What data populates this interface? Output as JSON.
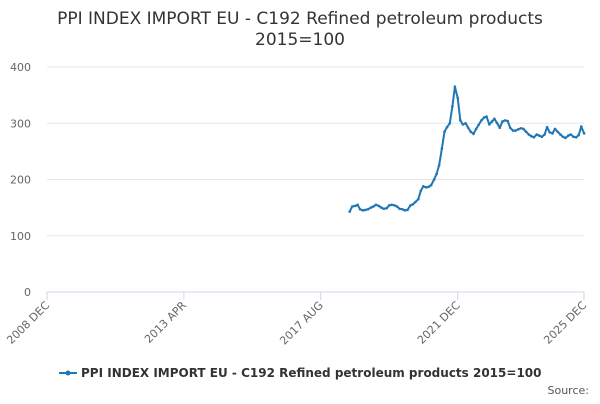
{
  "chart_data": {
    "type": "line",
    "title_lines": [
      "PPI INDEX IMPORT EU - C192 Refined petroleum products",
      "2015=100"
    ],
    "xlabel": "",
    "ylabel": "",
    "x_tick_labels": [
      "2008 DEC",
      "2013 APR",
      "2017 AUG",
      "2021 DEC",
      "2025 DEC"
    ],
    "x_tick_values": [
      2008.917,
      2013.25,
      2017.583,
      2021.917,
      2025.917
    ],
    "xlim": [
      2008.917,
      2025.917
    ],
    "ylim": [
      0,
      400
    ],
    "y_ticks": [
      0,
      100,
      200,
      300,
      400
    ],
    "grid": true,
    "legend_position": "bottom-center",
    "series": [
      {
        "name": "PPI INDEX IMPORT EU - C192 Refined petroleum products 2015=100",
        "color": "#1f77b4",
        "x": [
          2018.5,
          2018.58,
          2018.67,
          2018.75,
          2018.83,
          2018.92,
          2019.0,
          2019.08,
          2019.17,
          2019.25,
          2019.33,
          2019.42,
          2019.5,
          2019.58,
          2019.67,
          2019.75,
          2019.83,
          2019.92,
          2020.0,
          2020.08,
          2020.17,
          2020.25,
          2020.33,
          2020.42,
          2020.5,
          2020.58,
          2020.67,
          2020.75,
          2020.83,
          2020.92,
          2021.0,
          2021.08,
          2021.17,
          2021.25,
          2021.33,
          2021.42,
          2021.5,
          2021.58,
          2021.67,
          2021.75,
          2021.83,
          2021.92,
          2022.0,
          2022.08,
          2022.17,
          2022.25,
          2022.33,
          2022.42,
          2022.5,
          2022.58,
          2022.67,
          2022.75,
          2022.83,
          2022.92,
          2023.0,
          2023.08,
          2023.17,
          2023.25,
          2023.33,
          2023.42,
          2023.5,
          2023.58,
          2023.67,
          2023.75,
          2023.83,
          2023.92,
          2024.0,
          2024.08,
          2024.17,
          2024.25,
          2024.33,
          2024.42,
          2024.5,
          2024.58,
          2024.67,
          2024.75,
          2024.83,
          2024.92,
          2025.0,
          2025.08,
          2025.17,
          2025.25,
          2025.33,
          2025.42,
          2025.5,
          2025.58,
          2025.67,
          2025.75,
          2025.83,
          2025.92
        ],
        "values": [
          143,
          152,
          153,
          155,
          147,
          145,
          146,
          147,
          150,
          152,
          155,
          153,
          150,
          148,
          149,
          154,
          155,
          154,
          152,
          148,
          147,
          145,
          146,
          154,
          156,
          160,
          165,
          180,
          188,
          186,
          187,
          190,
          200,
          210,
          225,
          255,
          285,
          293,
          300,
          330,
          365,
          345,
          305,
          298,
          300,
          292,
          285,
          281,
          290,
          297,
          305,
          310,
          312,
          298,
          303,
          308,
          300,
          292,
          303,
          305,
          304,
          292,
          287,
          287,
          289,
          291,
          290,
          285,
          280,
          277,
          275,
          280,
          278,
          276,
          280,
          293,
          284,
          282,
          290,
          285,
          280,
          276,
          274,
          278,
          280,
          276,
          275,
          279,
          294,
          282
        ]
      }
    ]
  },
  "source_label": "Source:"
}
